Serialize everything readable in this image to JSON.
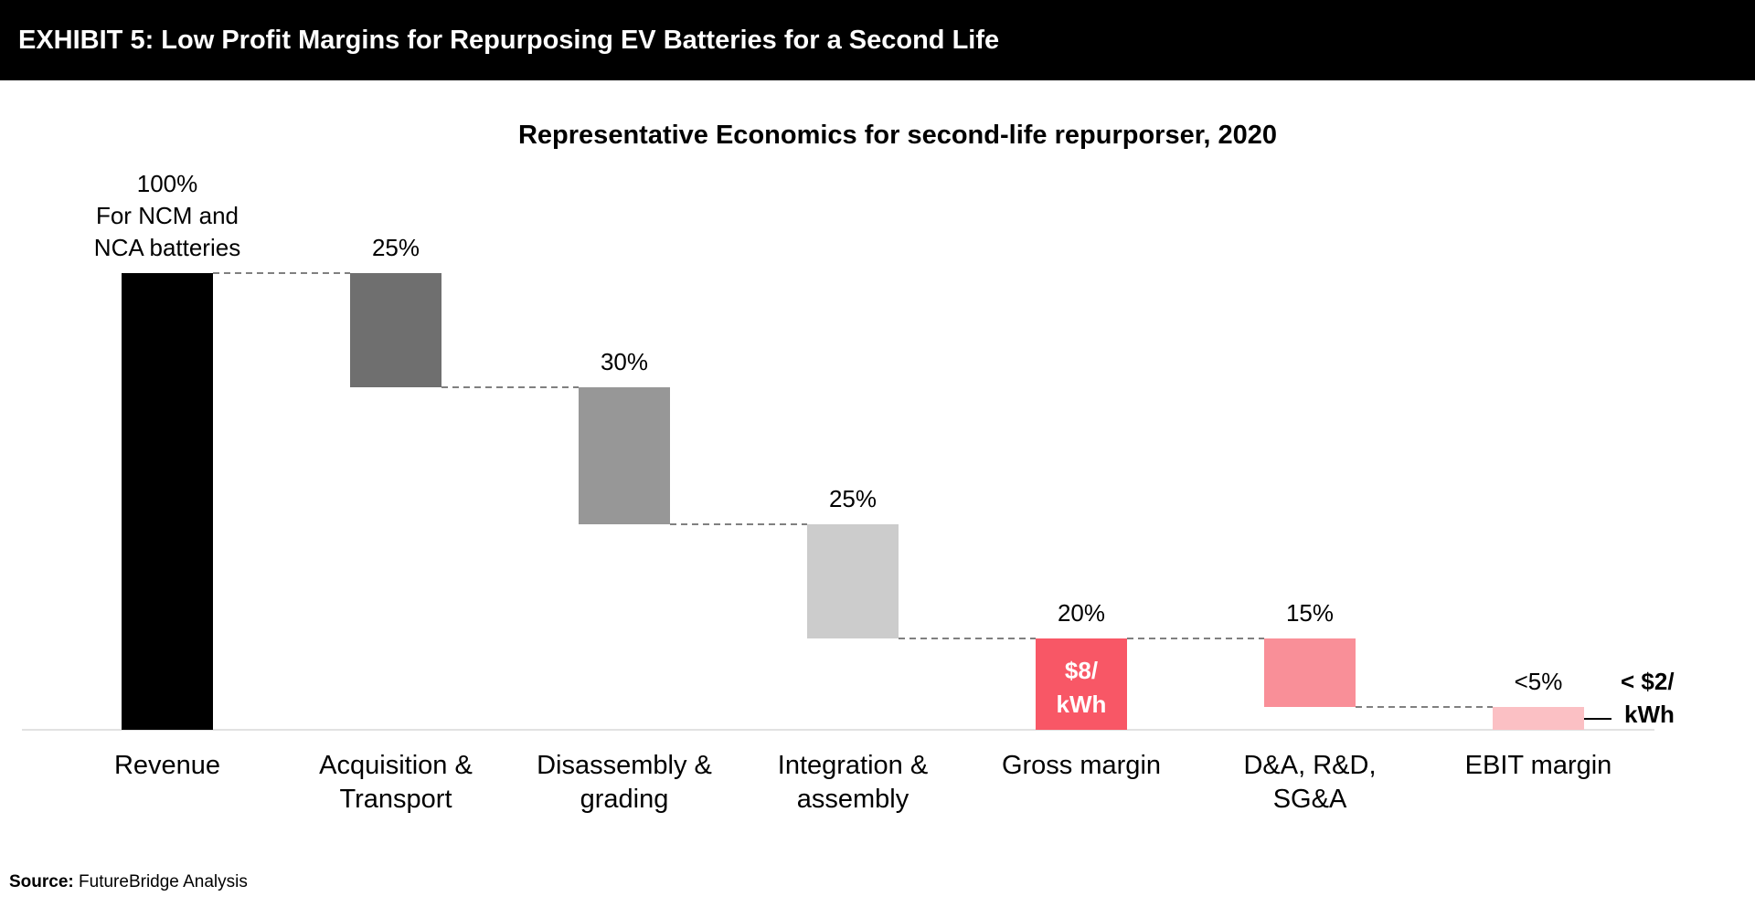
{
  "header": {
    "title": "EXHIBIT 5: Low Profit Margins for Repurposing EV Batteries for a Second Life"
  },
  "source": {
    "label": "Source:",
    "text": "FutureBridge Analysis"
  },
  "chart_data": {
    "type": "waterfall",
    "title": "Representative Economics for second-life repurporser, 2020",
    "categories": [
      "Revenue",
      "Acquisition & Transport",
      "Disassembly & grading",
      "Integration & assembly",
      "Gross margin",
      "D&A, R&D, SG&A",
      "EBIT margin"
    ],
    "category_lines": [
      [
        "Revenue"
      ],
      [
        "Acquisition &",
        "Transport"
      ],
      [
        "Disassembly &",
        "grading"
      ],
      [
        "Integration &",
        "assembly"
      ],
      [
        "Gross margin"
      ],
      [
        "D&A, R&D,",
        "SG&A"
      ],
      [
        "EBIT margin"
      ]
    ],
    "values": [
      100,
      25,
      30,
      25,
      20,
      15,
      5
    ],
    "bar_kinds": [
      "total",
      "decrease",
      "decrease",
      "decrease",
      "subtotal",
      "decrease",
      "subtotal"
    ],
    "value_labels": [
      [
        "100%",
        "For NCM and",
        "NCA batteries"
      ],
      [
        "25%"
      ],
      [
        "30%"
      ],
      [
        "25%"
      ],
      [
        "20%"
      ],
      [
        "15%"
      ],
      [
        "<5%"
      ]
    ],
    "colors": [
      "#000000",
      "#6f6f6f",
      "#979797",
      "#cccccc",
      "#f85766",
      "#f98f98",
      "#fbc0c4"
    ],
    "inner_annotation": {
      "bar": 4,
      "lines": [
        "$8/",
        "kWh"
      ],
      "color": "#ffffff"
    },
    "side_annotation": {
      "bar": 6,
      "lines": [
        "< $2/",
        "kWh"
      ]
    },
    "ylim": [
      0,
      100
    ],
    "grid": false,
    "legend": "none"
  }
}
